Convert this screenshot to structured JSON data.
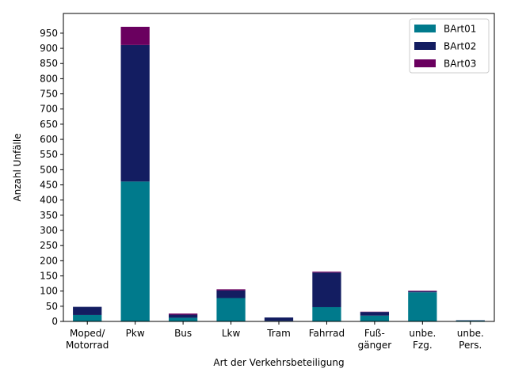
{
  "chart_data": {
    "type": "bar",
    "stacked": true,
    "title": "",
    "xlabel": "Art der Verkehrsbeteiligung",
    "ylabel": "Anzahl Unfälle",
    "ylim": [
      0,
      1015
    ],
    "yticks": [
      0,
      50,
      100,
      150,
      200,
      250,
      300,
      350,
      400,
      450,
      500,
      550,
      600,
      650,
      700,
      750,
      800,
      850,
      900,
      950
    ],
    "grid": false,
    "legend_position": "top-right",
    "categories": [
      [
        "Moped/",
        "Motorrad"
      ],
      [
        "Pkw"
      ],
      [
        "Bus"
      ],
      [
        "Lkw"
      ],
      [
        "Tram"
      ],
      [
        "Fahrrad"
      ],
      [
        "Fuß-",
        "gänger"
      ],
      [
        "unbe.",
        "Fzg."
      ],
      [
        "unbe.",
        "Pers."
      ]
    ],
    "series": [
      {
        "name": "BArt01",
        "color": "#007a8c",
        "values": [
          21,
          461,
          12,
          77,
          2,
          47,
          19,
          96,
          3
        ]
      },
      {
        "name": "BArt02",
        "color": "#131d61",
        "values": [
          27,
          450,
          10,
          25,
          11,
          114,
          12,
          3,
          1
        ]
      },
      {
        "name": "BArt03",
        "color": "#6a005f",
        "values": [
          0,
          60,
          4,
          4,
          0,
          3,
          1,
          2,
          0
        ]
      }
    ]
  }
}
